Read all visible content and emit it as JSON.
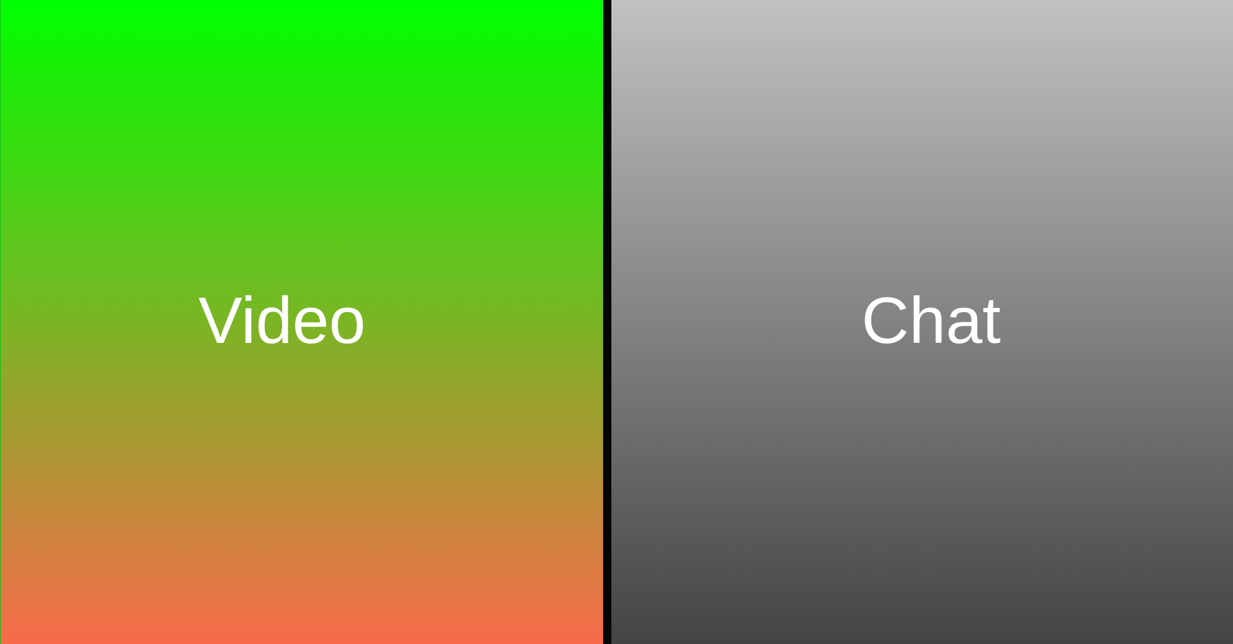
{
  "panes": {
    "video": {
      "label": "Video",
      "gradient_top": "#00ff00",
      "gradient_bottom": "#f76a4a"
    },
    "chat": {
      "label": "Chat",
      "gradient_top": "#c1c1c1",
      "gradient_bottom": "#444444"
    }
  },
  "divider": {
    "color": "#050505"
  }
}
